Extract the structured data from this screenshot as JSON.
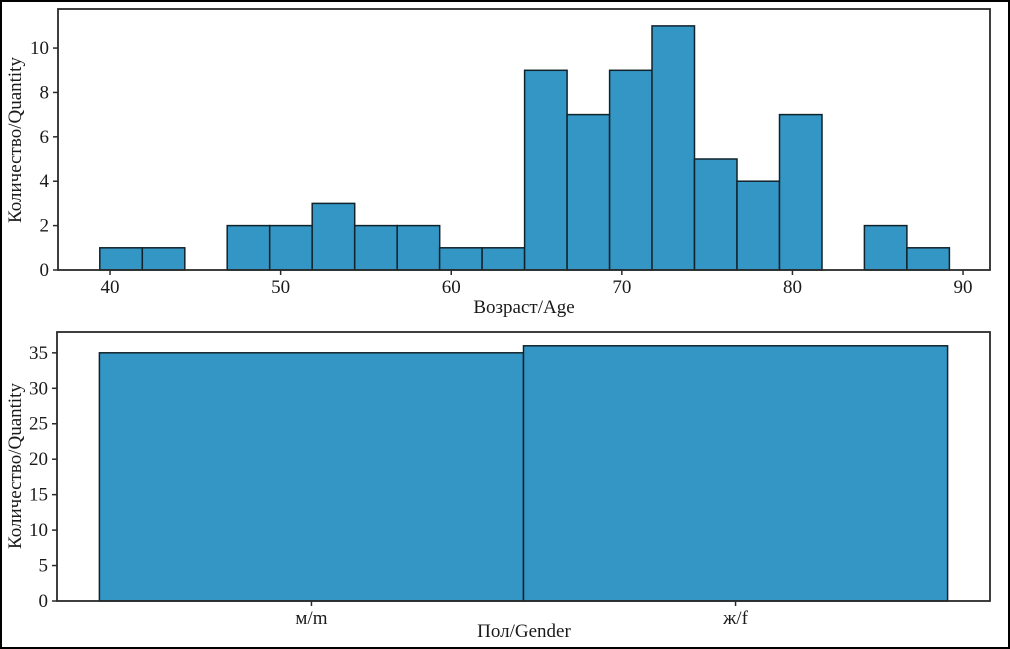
{
  "figure": {
    "background": "#ffffff",
    "frame_color": "#000000",
    "axis_color": "#2a2a2a",
    "text_color": "#1a1a1a",
    "bar_fill": "#3496c4",
    "bar_edge": "#10222b"
  },
  "chart_data": [
    {
      "type": "bar",
      "subtype": "histogram",
      "title": "",
      "xlabel": "Возраст/Age",
      "ylabel": "Количество/Quantity",
      "grid": false,
      "legend": null,
      "bin_edges": [
        39.4,
        41.89,
        44.38,
        46.87,
        49.36,
        51.85,
        54.34,
        56.83,
        59.32,
        61.81,
        64.3,
        66.79,
        69.28,
        71.77,
        74.26,
        76.75,
        79.24,
        81.73,
        84.22,
        86.71,
        89.2
      ],
      "counts": [
        1,
        1,
        0,
        2,
        2,
        3,
        2,
        2,
        1,
        1,
        9,
        7,
        9,
        11,
        5,
        4,
        7,
        0,
        2,
        1
      ],
      "xlim": [
        36.95,
        91.58
      ],
      "ylim": [
        0,
        11.76
      ],
      "xticks": [
        {
          "v": 40,
          "label": "40"
        },
        {
          "v": 50,
          "label": "50"
        },
        {
          "v": 60,
          "label": "60"
        },
        {
          "v": 70,
          "label": "70"
        },
        {
          "v": 80,
          "label": "80"
        },
        {
          "v": 90,
          "label": "90"
        }
      ],
      "yticks": [
        {
          "v": 0,
          "label": "0"
        },
        {
          "v": 2,
          "label": "2"
        },
        {
          "v": 4,
          "label": "4"
        },
        {
          "v": 6,
          "label": "6"
        },
        {
          "v": 8,
          "label": "8"
        },
        {
          "v": 10,
          "label": "10"
        }
      ]
    },
    {
      "type": "bar",
      "subtype": "categorical-histogram",
      "title": "",
      "xlabel": "Пол/Gender",
      "ylabel": "Количество/Quantity",
      "grid": false,
      "legend": null,
      "categories": [
        "м/m",
        "ж/f"
      ],
      "values": [
        35,
        36
      ],
      "bin_edges": [
        0,
        1,
        2
      ],
      "counts": [
        35,
        36
      ],
      "xlim": [
        -0.1,
        2.1
      ],
      "ylim": [
        0,
        37.94
      ],
      "xticks": [
        {
          "v": 0.5,
          "label": "м/m"
        },
        {
          "v": 1.5,
          "label": "ж/f"
        }
      ],
      "yticks": [
        {
          "v": 0,
          "label": "0"
        },
        {
          "v": 5,
          "label": "5"
        },
        {
          "v": 10,
          "label": "10"
        },
        {
          "v": 15,
          "label": "15"
        },
        {
          "v": 20,
          "label": "20"
        },
        {
          "v": 25,
          "label": "25"
        },
        {
          "v": 30,
          "label": "30"
        },
        {
          "v": 35,
          "label": "35"
        }
      ]
    }
  ]
}
